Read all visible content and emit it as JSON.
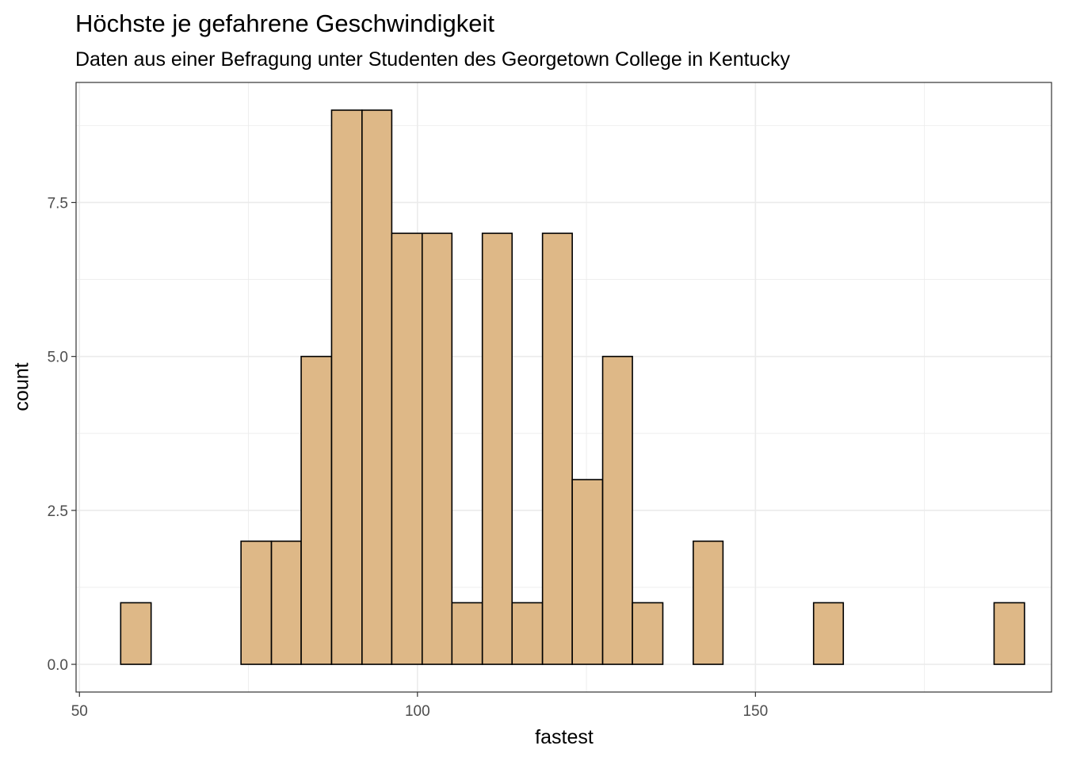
{
  "chart_data": {
    "type": "bar",
    "title": "Höchste je gefahrene Geschwindigkeit",
    "subtitle": "Daten aus einer Befragung unter Studenten des Georgetown College in Kentucky",
    "xlabel": "fastest",
    "ylabel": "count",
    "grid": true,
    "xlim": [
      49.5,
      193.8
    ],
    "ylim": [
      -0.45,
      9.45
    ],
    "x_ticks": [
      50,
      100,
      150
    ],
    "x_tick_labels": [
      "50",
      "100",
      "150"
    ],
    "y_ticks": [
      0,
      2.5,
      5,
      7.5
    ],
    "y_tick_labels": [
      "0.0",
      "2.5",
      "5.0",
      "7.5"
    ],
    "bins": [
      {
        "x0": 56.1,
        "x1": 60.6,
        "count": 1
      },
      {
        "x0": 60.6,
        "x1": 65.0,
        "count": 0
      },
      {
        "x0": 65.0,
        "x1": 69.5,
        "count": 0
      },
      {
        "x0": 69.5,
        "x1": 73.9,
        "count": 0
      },
      {
        "x0": 73.9,
        "x1": 78.4,
        "count": 2
      },
      {
        "x0": 78.4,
        "x1": 82.8,
        "count": 2
      },
      {
        "x0": 82.8,
        "x1": 87.3,
        "count": 5
      },
      {
        "x0": 87.3,
        "x1": 91.8,
        "count": 9
      },
      {
        "x0": 91.8,
        "x1": 96.2,
        "count": 9
      },
      {
        "x0": 96.2,
        "x1": 100.7,
        "count": 7
      },
      {
        "x0": 100.7,
        "x1": 105.1,
        "count": 7
      },
      {
        "x0": 105.1,
        "x1": 109.6,
        "count": 1
      },
      {
        "x0": 109.6,
        "x1": 114.0,
        "count": 7
      },
      {
        "x0": 114.0,
        "x1": 118.5,
        "count": 1
      },
      {
        "x0": 118.5,
        "x1": 122.9,
        "count": 7
      },
      {
        "x0": 122.9,
        "x1": 127.4,
        "count": 3
      },
      {
        "x0": 127.4,
        "x1": 131.8,
        "count": 5
      },
      {
        "x0": 131.8,
        "x1": 136.3,
        "count": 1
      },
      {
        "x0": 136.3,
        "x1": 140.8,
        "count": 0
      },
      {
        "x0": 140.8,
        "x1": 145.2,
        "count": 2
      },
      {
        "x0": 145.2,
        "x1": 149.7,
        "count": 0
      },
      {
        "x0": 149.7,
        "x1": 154.1,
        "count": 0
      },
      {
        "x0": 154.1,
        "x1": 158.6,
        "count": 0
      },
      {
        "x0": 158.6,
        "x1": 163.0,
        "count": 1
      },
      {
        "x0": 163.0,
        "x1": 167.5,
        "count": 0
      },
      {
        "x0": 167.5,
        "x1": 171.9,
        "count": 0
      },
      {
        "x0": 171.9,
        "x1": 176.4,
        "count": 0
      },
      {
        "x0": 176.4,
        "x1": 180.8,
        "count": 0
      },
      {
        "x0": 180.8,
        "x1": 185.3,
        "count": 0
      },
      {
        "x0": 185.3,
        "x1": 189.8,
        "count": 1
      }
    ],
    "bar_fill": "#DEB887",
    "bar_stroke": "#000000",
    "grid_color": "#EBEBEB"
  }
}
